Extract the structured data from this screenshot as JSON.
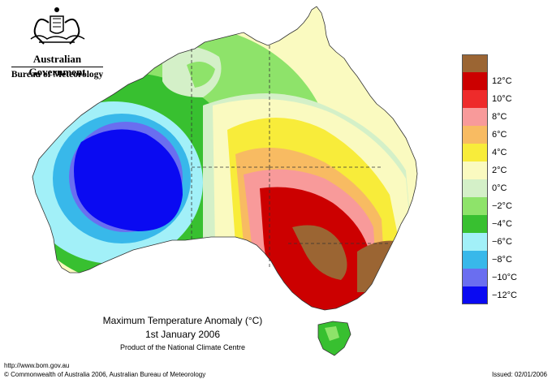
{
  "logo": {
    "line1": "Australian Government",
    "line2": "Bureau of Meteorology",
    "icon": "coat-of-arms-icon"
  },
  "map": {
    "title": "Maximum Temperature Anomaly (°C)",
    "date": "1st January 2006",
    "product": "Product of the National Climate Centre"
  },
  "legend": {
    "items": [
      {
        "label": "",
        "color": "#9b6533"
      },
      {
        "label": "12°C",
        "color": "#cc0000"
      },
      {
        "label": "10°C",
        "color": "#ee2b2b"
      },
      {
        "label": "8°C",
        "color": "#f89a9a"
      },
      {
        "label": "6°C",
        "color": "#f8bb62"
      },
      {
        "label": "4°C",
        "color": "#f8ec3a"
      },
      {
        "label": "2°C",
        "color": "#fafac0"
      },
      {
        "label": "0°C",
        "color": "#d4f0c8"
      },
      {
        "label": "−2°C",
        "color": "#8ee36a"
      },
      {
        "label": "−4°C",
        "color": "#38c030"
      },
      {
        "label": "−6°C",
        "color": "#a2f0f8"
      },
      {
        "label": "−8°C",
        "color": "#38b8ea"
      },
      {
        "label": "−10°C",
        "color": "#6a6ef0"
      },
      {
        "label": "−12°C",
        "color": "#0a0af2"
      }
    ]
  },
  "footer": {
    "url": "http://www.bom.gov.au",
    "copyright": "© Commonwealth of Australia 2006, Australian Bureau of Meteorology",
    "issued": "Issued: 02/01/2006"
  }
}
